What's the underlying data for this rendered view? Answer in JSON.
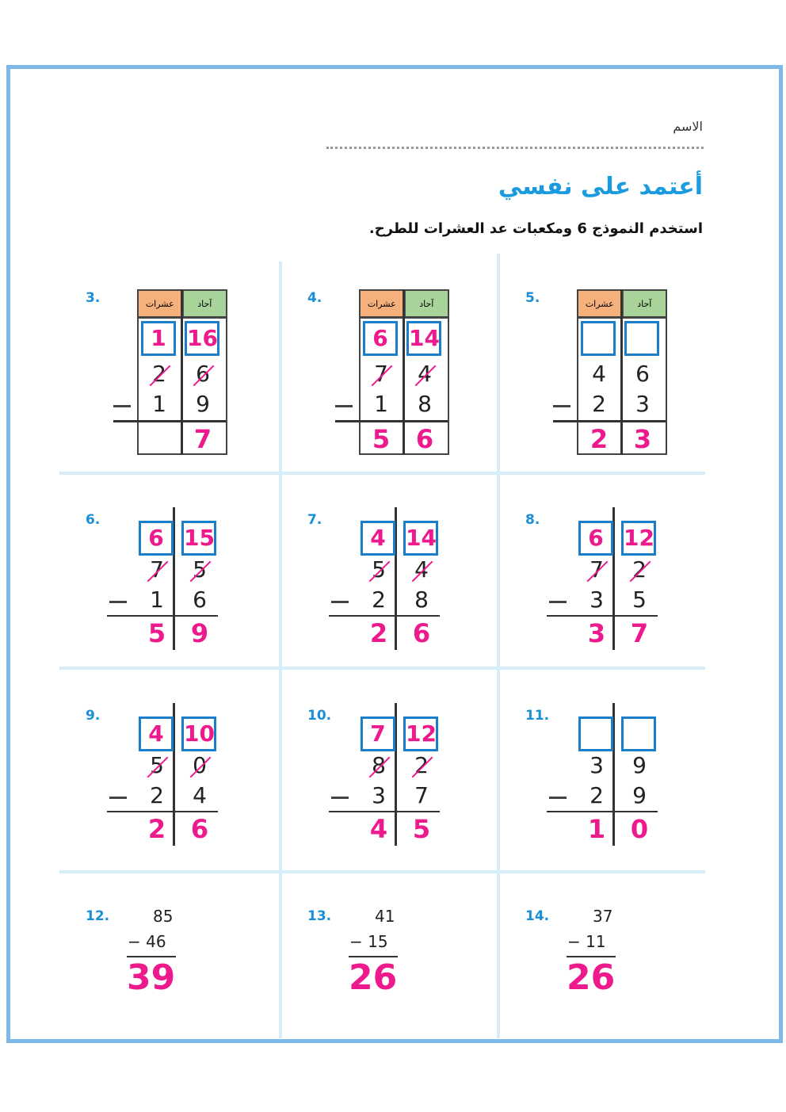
{
  "header": {
    "name_label": "الاسم",
    "title": "أعتمد على نفسي",
    "instruction": "استخدم النموذج 6 ومكعبات عد العشرات للطرح."
  },
  "table_headers": {
    "tens": "عشرات",
    "ones": "آحاد"
  },
  "colors": {
    "accent": "#1a9be0",
    "answer": "#ec1a8c",
    "tens_header": "#f6b07c",
    "ones_header": "#a8d49a",
    "frame": "#7db8e8"
  },
  "problems": [
    {
      "number": "3.",
      "style": "table",
      "regroup": [
        "1",
        "16"
      ],
      "top": [
        "2",
        "6"
      ],
      "crossed": true,
      "bottom": [
        "1",
        "9"
      ],
      "result": [
        "",
        "7"
      ]
    },
    {
      "number": "4.",
      "style": "table",
      "regroup": [
        "6",
        "14"
      ],
      "top": [
        "7",
        "4"
      ],
      "crossed": true,
      "bottom": [
        "1",
        "8"
      ],
      "result": [
        "5",
        "6"
      ]
    },
    {
      "number": "5.",
      "style": "table",
      "regroup": [
        "",
        ""
      ],
      "top": [
        "4",
        "6"
      ],
      "crossed": false,
      "bottom": [
        "2",
        "3"
      ],
      "result": [
        "2",
        "3"
      ]
    },
    {
      "number": "6.",
      "style": "columns",
      "regroup": [
        "6",
        "15"
      ],
      "top": [
        "7",
        "5"
      ],
      "crossed": true,
      "bottom": [
        "1",
        "6"
      ],
      "result": [
        "5",
        "9"
      ]
    },
    {
      "number": "7.",
      "style": "columns",
      "regroup": [
        "4",
        "14"
      ],
      "top": [
        "5",
        "4"
      ],
      "crossed": true,
      "bottom": [
        "2",
        "8"
      ],
      "result": [
        "2",
        "6"
      ]
    },
    {
      "number": "8.",
      "style": "columns",
      "regroup": [
        "6",
        "12"
      ],
      "top": [
        "7",
        "2"
      ],
      "crossed": true,
      "bottom": [
        "3",
        "5"
      ],
      "result": [
        "3",
        "7"
      ]
    },
    {
      "number": "9.",
      "style": "columns",
      "regroup": [
        "4",
        "10"
      ],
      "top": [
        "5",
        "0"
      ],
      "crossed": true,
      "bottom": [
        "2",
        "4"
      ],
      "result": [
        "2",
        "6"
      ]
    },
    {
      "number": "10.",
      "style": "columns",
      "regroup": [
        "7",
        "12"
      ],
      "top": [
        "8",
        "2"
      ],
      "crossed": true,
      "bottom": [
        "3",
        "7"
      ],
      "result": [
        "4",
        "5"
      ]
    },
    {
      "number": "11.",
      "style": "columns",
      "regroup": [
        "",
        ""
      ],
      "top": [
        "3",
        "9"
      ],
      "crossed": false,
      "bottom": [
        "2",
        "9"
      ],
      "result": [
        "1",
        "0"
      ]
    },
    {
      "number": "12.",
      "style": "inline",
      "top": "85",
      "bottom": "− 46",
      "result": "39"
    },
    {
      "number": "13.",
      "style": "inline",
      "top": "41",
      "bottom": "− 15",
      "result": "26"
    },
    {
      "number": "14.",
      "style": "inline",
      "top": "37",
      "bottom": "− 11",
      "result": "26"
    }
  ]
}
